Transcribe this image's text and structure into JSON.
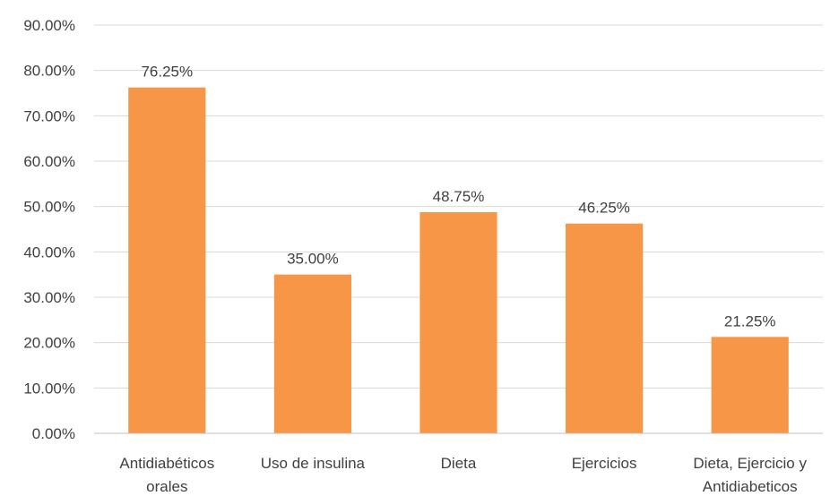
{
  "chart_data": {
    "type": "bar",
    "categories": [
      [
        "Antidiabéticos",
        "orales"
      ],
      [
        "Uso de insulina"
      ],
      [
        "Dieta"
      ],
      [
        "Ejercicios"
      ],
      [
        "Dieta, Ejercicio y",
        "Antidiabeticos"
      ]
    ],
    "values": [
      76.25,
      35.0,
      48.75,
      46.25,
      21.25
    ],
    "data_labels": [
      "76.25%",
      "35.00%",
      "48.75%",
      "46.25%",
      "21.25%"
    ],
    "y_ticks": [
      "0.00%",
      "10.00%",
      "20.00%",
      "30.00%",
      "40.00%",
      "50.00%",
      "60.00%",
      "70.00%",
      "80.00%",
      "90.00%"
    ],
    "ylim": [
      0,
      90
    ],
    "grid": true,
    "legend": "none",
    "bar_color": "#f79646",
    "title": "",
    "xlabel": "",
    "ylabel": ""
  }
}
